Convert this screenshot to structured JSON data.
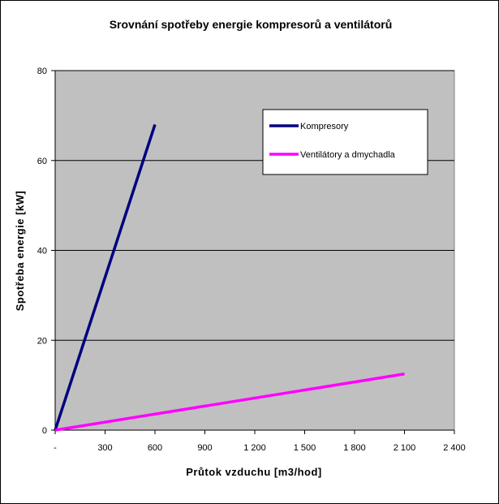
{
  "chart_data": {
    "type": "line",
    "title": "Srovnání spotřeby energie kompresorů a ventilátorů",
    "xlabel": "Průtok vzduchu [m3/hod]",
    "ylabel": "Spotřeba energie [kW]",
    "xlim": [
      0,
      2400
    ],
    "ylim": [
      0,
      80
    ],
    "x_ticks": [
      0,
      300,
      600,
      900,
      1200,
      1500,
      1800,
      2100,
      2400
    ],
    "x_tick_labels": [
      "-",
      "300",
      "600",
      "900",
      "1 200",
      "1 500",
      "1 800",
      "2 100",
      "2 400"
    ],
    "y_ticks": [
      0,
      20,
      40,
      60,
      80
    ],
    "y_tick_labels": [
      "0",
      "20",
      "40",
      "60",
      "80"
    ],
    "grid": "horizontal",
    "plot_background": "#c0c0c0",
    "legend_position": "top-right",
    "series": [
      {
        "name": "Kompresory",
        "color": "#000080",
        "x": [
          0,
          600
        ],
        "y": [
          0,
          68
        ]
      },
      {
        "name": "Ventilátory a dmychadla",
        "color": "#ff00ff",
        "x": [
          0,
          2100
        ],
        "y": [
          0,
          12.5
        ]
      }
    ]
  }
}
